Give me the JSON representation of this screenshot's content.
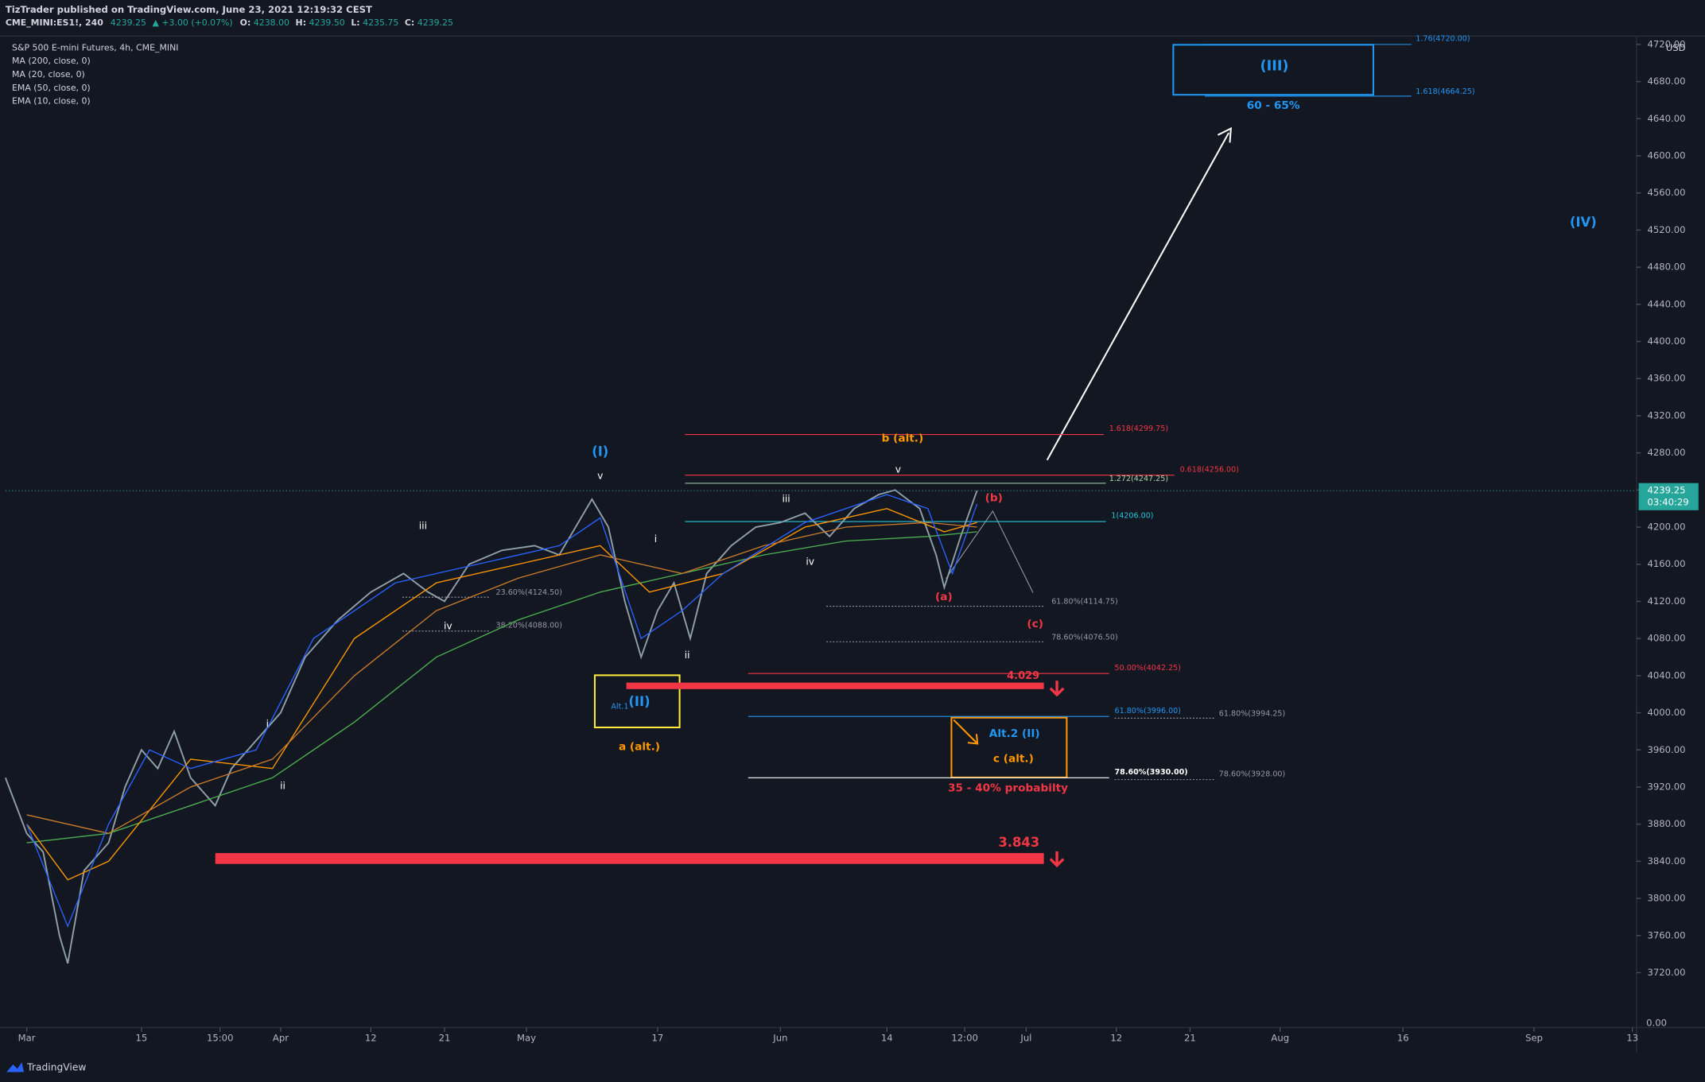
{
  "header": {
    "publisher": "TizTrader published on TradingView.com, June 23, 2021 12:19:32 CEST",
    "symbol": "CME_MINI:ES1!, 240",
    "last": "4239.25",
    "change": "▲ +3.00 (+0.07%)",
    "open_label": "O:",
    "open": "4238.00",
    "high_label": "H:",
    "high": "4239.50",
    "low_label": "L:",
    "low": "4235.75",
    "close_label": "C:",
    "close": "4239.25"
  },
  "footer": {
    "brand": "TradingView"
  },
  "chart_data": {
    "type": "line",
    "series": [
      {
        "name": "S&P 500 E-mini Futures, 4h, CME_MINI",
        "color": "#8fa0a8",
        "x": [
          -2.6,
          0,
          2,
          4,
          5,
          7,
          10,
          12,
          14,
          16,
          18,
          20,
          23,
          25,
          28,
          31,
          34,
          38,
          42,
          46,
          49,
          51,
          54,
          58,
          62,
          65,
          69,
          71,
          73,
          75,
          77,
          79,
          81,
          83,
          86,
          89,
          92,
          95,
          98,
          101,
          104,
          106,
          109,
          111,
          112,
          114,
          116
        ],
        "values": [
          3930,
          3870,
          3850,
          3760,
          3730,
          3830,
          3860,
          3920,
          3960,
          3940,
          3980,
          3930,
          3900,
          3940,
          3970,
          4000,
          4060,
          4100,
          4130,
          4150,
          4130,
          4120,
          4160,
          4175,
          4180,
          4170,
          4230,
          4200,
          4120,
          4060,
          4110,
          4140,
          4080,
          4150,
          4180,
          4200,
          4205,
          4215,
          4190,
          4220,
          4235,
          4240,
          4220,
          4170,
          4135,
          4190,
          4239.25
        ]
      },
      {
        "name": "MA (200, close, 0)",
        "color": "#4caf50",
        "x": [
          0,
          10,
          20,
          30,
          40,
          50,
          60,
          70,
          80,
          90,
          100,
          110,
          116
        ],
        "values": [
          3860,
          3870,
          3900,
          3930,
          3990,
          4060,
          4100,
          4130,
          4150,
          4170,
          4185,
          4190,
          4195
        ]
      },
      {
        "name": "MA (20, close, 0)",
        "color": "#ff9800",
        "x": [
          0,
          5,
          10,
          20,
          30,
          40,
          50,
          60,
          70,
          76,
          85,
          95,
          105,
          112,
          116
        ],
        "values": [
          3880,
          3820,
          3840,
          3950,
          3940,
          4080,
          4140,
          4160,
          4180,
          4130,
          4150,
          4200,
          4220,
          4195,
          4205
        ]
      },
      {
        "name": "EMA (50, close, 0)",
        "color": "#c77b2a",
        "x": [
          0,
          10,
          20,
          30,
          40,
          50,
          60,
          70,
          80,
          90,
          100,
          110,
          116
        ],
        "values": [
          3890,
          3870,
          3920,
          3950,
          4040,
          4110,
          4145,
          4170,
          4150,
          4180,
          4200,
          4205,
          4200
        ]
      },
      {
        "name": "EMA (10, close, 0)",
        "color": "#2962ff",
        "x": [
          0,
          5,
          10,
          15,
          20,
          28,
          35,
          45,
          55,
          65,
          70,
          75,
          80,
          85,
          95,
          105,
          110,
          113,
          116
        ],
        "values": [
          3880,
          3770,
          3880,
          3960,
          3940,
          3960,
          4080,
          4140,
          4160,
          4180,
          4210,
          4080,
          4110,
          4150,
          4205,
          4235,
          4220,
          4150,
          4225
        ]
      }
    ],
    "xlim": [
      -2.6,
      196.5
    ],
    "xticks": [
      {
        "value": 0,
        "label": "Mar"
      },
      {
        "value": 14,
        "label": "15"
      },
      {
        "value": 23.6,
        "label": "15:00"
      },
      {
        "value": 31,
        "label": "Apr"
      },
      {
        "value": 42,
        "label": "12"
      },
      {
        "value": 51,
        "label": "21"
      },
      {
        "value": 61,
        "label": "May"
      },
      {
        "value": 77,
        "label": "17"
      },
      {
        "value": 92,
        "label": "Jun"
      },
      {
        "value": 105,
        "label": "14"
      },
      {
        "value": 114.5,
        "label": "12:00"
      },
      {
        "value": 122,
        "label": "Jul"
      },
      {
        "value": 133,
        "label": "12"
      },
      {
        "value": 142,
        "label": "21"
      },
      {
        "value": 153,
        "label": "Aug"
      },
      {
        "value": 168,
        "label": "16"
      },
      {
        "value": 184,
        "label": "Sep"
      },
      {
        "value": 196,
        "label": "13"
      }
    ],
    "ylim": [
      3661,
      4729
    ],
    "yticks": [
      {
        "value": 3720,
        "label": "3720.00"
      },
      {
        "value": 3760,
        "label": "3760.00"
      },
      {
        "value": 3800,
        "label": "3800.00"
      },
      {
        "value": 3840,
        "label": "3840.00"
      },
      {
        "value": 3880,
        "label": "3880.00"
      },
      {
        "value": 3920,
        "label": "3920.00"
      },
      {
        "value": 3960,
        "label": "3960.00"
      },
      {
        "value": 4000,
        "label": "4000.00"
      },
      {
        "value": 4040,
        "label": "4040.00"
      },
      {
        "value": 4080,
        "label": "4080.00"
      },
      {
        "value": 4120,
        "label": "4120.00"
      },
      {
        "value": 4160,
        "label": "4160.00"
      },
      {
        "value": 4200,
        "label": "4200.00"
      },
      {
        "value": 4240,
        "label": "4240.00"
      },
      {
        "value": 4280,
        "label": "4280.00"
      },
      {
        "value": 4320,
        "label": "4320.00"
      },
      {
        "value": 4360,
        "label": "4360.00"
      },
      {
        "value": 4400,
        "label": "4400.00"
      },
      {
        "value": 4440,
        "label": "4440.00"
      },
      {
        "value": 4480,
        "label": "4480.00"
      },
      {
        "value": 4520,
        "label": "4520.00"
      },
      {
        "value": 4560,
        "label": "4560.00"
      },
      {
        "value": 4600,
        "label": "4600.00"
      },
      {
        "value": 4640,
        "label": "4640.00"
      },
      {
        "value": 4680,
        "label": "4680.00"
      },
      {
        "value": 4720,
        "label": "4720.00"
      }
    ],
    "grid": false,
    "y_unit": "USD",
    "lower_pane_tick": {
      "value": 0,
      "label": "0.00"
    },
    "last_price": 4239.25,
    "countdown": "03:40:29",
    "levels": [
      {
        "value": 4720,
        "label": "1.76(4720.00)",
        "color": "#2196f3"
      },
      {
        "value": 4664.25,
        "label": "1.618(4664.25)",
        "color": "#2196f3"
      },
      {
        "value": 4299.75,
        "label": "1.618(4299.75)",
        "color": "#f23645"
      },
      {
        "value": 4256,
        "label": "0.618(4256.00)",
        "color": "#f23645"
      },
      {
        "value": 4247.25,
        "label": "1.272(4247.25)",
        "color": "#a5d6a7"
      },
      {
        "value": 4206,
        "label": "1(4206.00)",
        "color": "#26c6da"
      },
      {
        "value": 4114.75,
        "label": "61.80%(4114.75)",
        "color": "#9598a1"
      },
      {
        "value": 4076.5,
        "label": "78.60%(4076.50)",
        "color": "#9598a1"
      },
      {
        "value": 4124.5,
        "label": "23.60%(4124.50)",
        "color": "#9598a1"
      },
      {
        "value": 4088,
        "label": "38.20%(4088.00)",
        "color": "#9598a1"
      },
      {
        "value": 4042.25,
        "label": "50.00%(4042.25)",
        "color": "#f23645"
      },
      {
        "value": 3996,
        "label": "61.80%(3996.00)",
        "color": "#2196f3"
      },
      {
        "value": 3930,
        "label": "78.60%(3930.00)",
        "color": "#ffffff"
      },
      {
        "value": 3994.25,
        "label": "61.80%(3994.25)",
        "color": "#9598a1"
      },
      {
        "value": 3928,
        "label": "78.60%(3928.00)",
        "color": "#9598a1"
      }
    ],
    "supports": [
      {
        "value": 4029,
        "label": "4.029",
        "color": "#f23645"
      },
      {
        "value": 3843,
        "label": "3.843",
        "color": "#f23645"
      }
    ],
    "annotations": [
      {
        "text": "(I)",
        "color": "#2196f3"
      },
      {
        "text": "v",
        "color": "#ffffff"
      },
      {
        "text": "iii",
        "color": "#ffffff"
      },
      {
        "text": "iv",
        "color": "#ffffff"
      },
      {
        "text": "i",
        "color": "#ffffff"
      },
      {
        "text": "ii",
        "color": "#ffffff"
      },
      {
        "text": "(II)",
        "color": "#2196f3"
      },
      {
        "text": "Alt.1",
        "color": "#2196f3"
      },
      {
        "text": "a (alt.)",
        "color": "#ff9800"
      },
      {
        "text": "i",
        "color": "#ffffff"
      },
      {
        "text": "ii",
        "color": "#ffffff"
      },
      {
        "text": "iii",
        "color": "#ffffff"
      },
      {
        "text": "iv",
        "color": "#ffffff"
      },
      {
        "text": "v",
        "color": "#ffffff"
      },
      {
        "text": "b (alt.)",
        "color": "#ff9800"
      },
      {
        "text": "(a)",
        "color": "#f23645"
      },
      {
        "text": "(b)",
        "color": "#f23645"
      },
      {
        "text": "(c)",
        "color": "#f23645"
      },
      {
        "text": "(III)",
        "color": "#2196f3"
      },
      {
        "text": "60 - 65%",
        "color": "#2196f3"
      },
      {
        "text": "(IV)",
        "color": "#2196f3"
      },
      {
        "text": "Alt.2 (II)",
        "color": "#2196f3"
      },
      {
        "text": "c (alt.)",
        "color": "#ff9800"
      },
      {
        "text": "35 - 40% probabilty",
        "color": "#f23645"
      }
    ]
  }
}
